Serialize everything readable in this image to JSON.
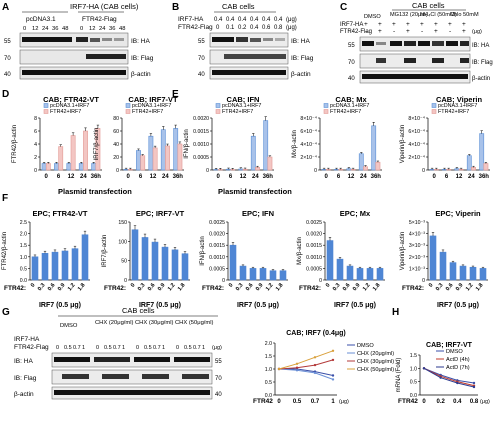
{
  "figure": {
    "panel_letters": [
      "A",
      "B",
      "C",
      "D",
      "E",
      "F",
      "G",
      "H"
    ],
    "blot_labels": {
      "ha": "IB: HA",
      "flag": "IB: Flag",
      "actin": "β-actin"
    },
    "mw": {
      "m40": "40",
      "m55": "55",
      "m70": "70"
    },
    "panelA": {
      "header": "IRF7-HA (CAB cells)",
      "groups": [
        "pcDNA3.1",
        "FTR42-Flag"
      ],
      "lanes": [
        "0",
        "12",
        "24",
        "36",
        "48",
        "0",
        "12",
        "24",
        "36",
        "48"
      ]
    },
    "panelB": {
      "header": "CAB cells",
      "row1_label": "IRF7-HA",
      "row2_label": "FTR42-Flag",
      "row1_values": [
        "0.4",
        "0.4",
        "0.4",
        "0.4",
        "0.4",
        "0.4"
      ],
      "row2_values": [
        "0",
        "0.1",
        "0.2",
        "0.4",
        "0.6",
        "0.8"
      ],
      "unit": "(μg)"
    },
    "panelC": {
      "header": "CAB cells",
      "treatments": [
        "DMSO",
        "MG132 (20μm)",
        "NH₄Cl (50mM)",
        "Chlo 50mM"
      ],
      "row1_label": "IRF7-HA",
      "row2_label": "FTR42-Flag",
      "row1_values": [
        "+",
        "+",
        "+",
        "+",
        "+",
        "+",
        "+",
        "+"
      ],
      "row2_values": [
        "-",
        "+",
        "-",
        "+",
        "-",
        "+",
        "-",
        "+"
      ],
      "unit": "(μg)"
    },
    "panelG": {
      "header": "CAB cells",
      "treatments": [
        "DMSO",
        "CHX (20μg/ml)",
        "CHX (30μg/ml)",
        "CHX (50μg/ml)"
      ],
      "row1_label": "IRF7-HA",
      "row2_label": "FTR42-Flag",
      "ftr_values": [
        "0",
        "0.5",
        "0.7",
        "1"
      ],
      "unit": "(μg)"
    },
    "footers": {
      "plasmid_transfection": "Plasmid transfection",
      "irf7_amount": "IRF7 (0.5 μg)",
      "ftr42": "FTR42:"
    }
  },
  "colors": {
    "pcdna": "#5b8fd6",
    "ftr42": "#e39a95",
    "dmso": "#3a4fa8",
    "chx20": "#6a8fd6",
    "chx30": "#b33a3a",
    "chx50": "#d9a03a",
    "actd4": "#c0392b",
    "actd7": "#2b3a8f",
    "bar_blue": "#4f86d4"
  },
  "chart_data": [
    {
      "id": "D1",
      "type": "bar",
      "title": "CAB; FTR42-VT",
      "ylabel": "FTR42/β-actin",
      "categories": [
        "0",
        "6",
        "12",
        "24",
        "36h"
      ],
      "ylim": [
        0,
        8
      ],
      "yticks": [
        "0",
        "2",
        "4",
        "6",
        "8"
      ],
      "series": [
        {
          "name": "pcDNA3.1+IRF7",
          "values": [
            1.0,
            1.0,
            1.0,
            1.0,
            1.0
          ]
        },
        {
          "name": "FTR42+IRF7",
          "values": [
            1.0,
            3.6,
            5.3,
            6.0,
            6.4
          ]
        }
      ]
    },
    {
      "id": "D2",
      "type": "bar",
      "title": "CAB; IRF7-VT",
      "ylabel": "IRF7/β-actin",
      "categories": [
        "0",
        "6",
        "12",
        "24",
        "36h"
      ],
      "ylim": [
        0,
        80
      ],
      "yticks": [
        "0",
        "20",
        "40",
        "60",
        "80"
      ],
      "series": [
        {
          "name": "pcDNA3.1+IRF7",
          "values": [
            1,
            30,
            52,
            62,
            64
          ]
        },
        {
          "name": "FTR42+IRF7",
          "values": [
            1,
            22,
            34,
            37,
            40
          ]
        }
      ]
    },
    {
      "id": "E1",
      "type": "bar",
      "title": "CAB; IFN",
      "ylabel": "IFN/β-actin",
      "categories": [
        "0",
        "6",
        "12",
        "24",
        "36h"
      ],
      "ylim": [
        0,
        0.002
      ],
      "yticks": [
        "0",
        "0.0005",
        "0.0010",
        "0.0015",
        "0.0020"
      ],
      "series": [
        {
          "name": "pcDNA3.1+IRF7",
          "values": [
            2e-05,
            3e-05,
            4e-05,
            0.0013,
            0.0019
          ]
        },
        {
          "name": "FTR42+IRF7",
          "values": [
            2e-05,
            2e-05,
            3e-05,
            0.0001,
            0.0005
          ]
        }
      ]
    },
    {
      "id": "E2",
      "type": "bar",
      "title": "CAB; Mx",
      "ylabel": "Mx/β-actin",
      "categories": [
        "0",
        "6",
        "12",
        "24",
        "36h"
      ],
      "ylim": [
        0,
        0.0008
      ],
      "yticks": [
        "0",
        "2×10⁻⁴",
        "4×10⁻⁴",
        "6×10⁻⁴",
        "8×10⁻⁴"
      ],
      "series": [
        {
          "name": "pcDNA3.1+IRF7",
          "values": [
            1e-05,
            1e-05,
            2e-05,
            0.00025,
            0.00068
          ]
        },
        {
          "name": "FTR42+IRF7",
          "values": [
            1e-05,
            1e-05,
            1e-05,
            5e-05,
            0.00012
          ]
        }
      ]
    },
    {
      "id": "E3",
      "type": "bar",
      "title": "CAB; Viperin",
      "ylabel": "Viperin/β-actin",
      "categories": [
        "0",
        "6",
        "12",
        "24",
        "36h"
      ],
      "ylim": [
        0,
        0.0008
      ],
      "yticks": [
        "0",
        "2×10⁻⁴",
        "4×10⁻⁴",
        "6×10⁻⁴",
        "8×10⁻⁴"
      ],
      "series": [
        {
          "name": "pcDNA3.1+IRF7",
          "values": [
            1e-05,
            1e-05,
            2e-05,
            0.00022,
            0.00056
          ]
        },
        {
          "name": "FTR42+IRF7",
          "values": [
            1e-05,
            1e-05,
            1e-05,
            4e-05,
            0.0001
          ]
        }
      ]
    },
    {
      "id": "F1",
      "type": "bar",
      "title": "EPC; FTR42-VT",
      "ylabel": "FTR42/β-actin",
      "categories": [
        "0",
        "0.3",
        "0.6",
        "0.9",
        "1.2",
        "1.8"
      ],
      "ylim": [
        0,
        2.5
      ],
      "yticks": [
        "0.0",
        "0.5",
        "1.0",
        "1.5",
        "2.0",
        "2.5"
      ],
      "series": [
        {
          "name": "",
          "values": [
            1.0,
            1.15,
            1.2,
            1.25,
            1.35,
            1.95
          ]
        }
      ]
    },
    {
      "id": "F2",
      "type": "bar",
      "title": "EPC; IRF7-VT",
      "ylabel": "IRF7/β-actin",
      "categories": [
        "0",
        "0.3",
        "0.6",
        "0.9",
        "1.2",
        "1.8"
      ],
      "ylim": [
        0,
        150
      ],
      "yticks": [
        "0",
        "50",
        "100",
        "150"
      ],
      "series": [
        {
          "name": "",
          "values": [
            130,
            110,
            98,
            85,
            78,
            68
          ]
        }
      ]
    },
    {
      "id": "F3",
      "type": "bar",
      "title": "EPC; IFN",
      "ylabel": "IFN/β-actin",
      "categories": [
        "0",
        "0.3",
        "0.6",
        "0.9",
        "1.2",
        "1.8"
      ],
      "ylim": [
        0,
        0.0025
      ],
      "yticks": [
        "0",
        "0.0005",
        "0.0010",
        "0.0015",
        "0.0020",
        "0.0025"
      ],
      "series": [
        {
          "name": "",
          "values": [
            0.0015,
            0.0006,
            0.0005,
            0.0005,
            0.0004,
            0.0004
          ]
        }
      ]
    },
    {
      "id": "F4",
      "type": "bar",
      "title": "EPC; Mx",
      "ylabel": "Mx/β-actin",
      "categories": [
        "0",
        "0.3",
        "0.6",
        "0.9",
        "1.2",
        "1.8"
      ],
      "ylim": [
        0,
        0.0025
      ],
      "yticks": [
        "0",
        "0.0005",
        "0.0010",
        "0.0015",
        "0.0020",
        "0.0025"
      ],
      "series": [
        {
          "name": "",
          "values": [
            0.0017,
            0.0009,
            0.0006,
            0.0005,
            0.0005,
            0.0005
          ]
        }
      ]
    },
    {
      "id": "F5",
      "type": "bar",
      "title": "EPC; Viperin",
      "ylabel": "Viperin/β-actin",
      "categories": [
        "0",
        "0.3",
        "0.6",
        "0.9",
        "1.2",
        "1.8"
      ],
      "ylim": [
        0,
        0.005
      ],
      "yticks": [
        "0",
        "1×10⁻³",
        "2×10⁻³",
        "3×10⁻³",
        "4×10⁻³",
        "5×10⁻³"
      ],
      "series": [
        {
          "name": "",
          "values": [
            0.0038,
            0.0024,
            0.0015,
            0.0012,
            0.0011,
            0.001
          ]
        }
      ]
    },
    {
      "id": "G",
      "type": "line",
      "title": "CAB; IRF7 (0.4μg)",
      "xlabel": "FTR42",
      "categories": [
        "0",
        "0.5",
        "0.7",
        "1"
      ],
      "x_unit": "(μg)",
      "ylim": [
        0,
        2.0
      ],
      "yticks": [
        "0.0",
        "0.5",
        "1.0",
        "1.5",
        "2.0"
      ],
      "series": [
        {
          "name": "DMSO",
          "values": [
            1.0,
            1.0,
            0.9,
            0.75
          ]
        },
        {
          "name": "CHX (20μg/ml)",
          "values": [
            1.0,
            0.95,
            0.85,
            0.6
          ]
        },
        {
          "name": "CHX (30μg/ml)",
          "values": [
            1.0,
            1.05,
            1.15,
            1.35
          ]
        },
        {
          "name": "CHX (50μg/ml)",
          "values": [
            1.0,
            1.2,
            1.45,
            1.7
          ]
        }
      ]
    },
    {
      "id": "H",
      "type": "line",
      "title": "CAB; IRF7-VT",
      "ylabel": "mRNA (Fold)",
      "xlabel": "FTR42",
      "categories": [
        "0",
        "0.2",
        "0.4",
        "0.8"
      ],
      "x_unit": "(μg)",
      "ylim": [
        0,
        1.5
      ],
      "yticks": [
        "0.0",
        "0.5",
        "1.0",
        "1.5"
      ],
      "series": [
        {
          "name": "DMSO",
          "values": [
            1.0,
            0.75,
            0.55,
            0.45
          ]
        },
        {
          "name": "ActD (4h)",
          "values": [
            1.0,
            0.7,
            0.5,
            0.35
          ]
        },
        {
          "name": "ActD (7h)",
          "values": [
            1.0,
            0.65,
            0.45,
            0.3
          ]
        }
      ]
    }
  ]
}
